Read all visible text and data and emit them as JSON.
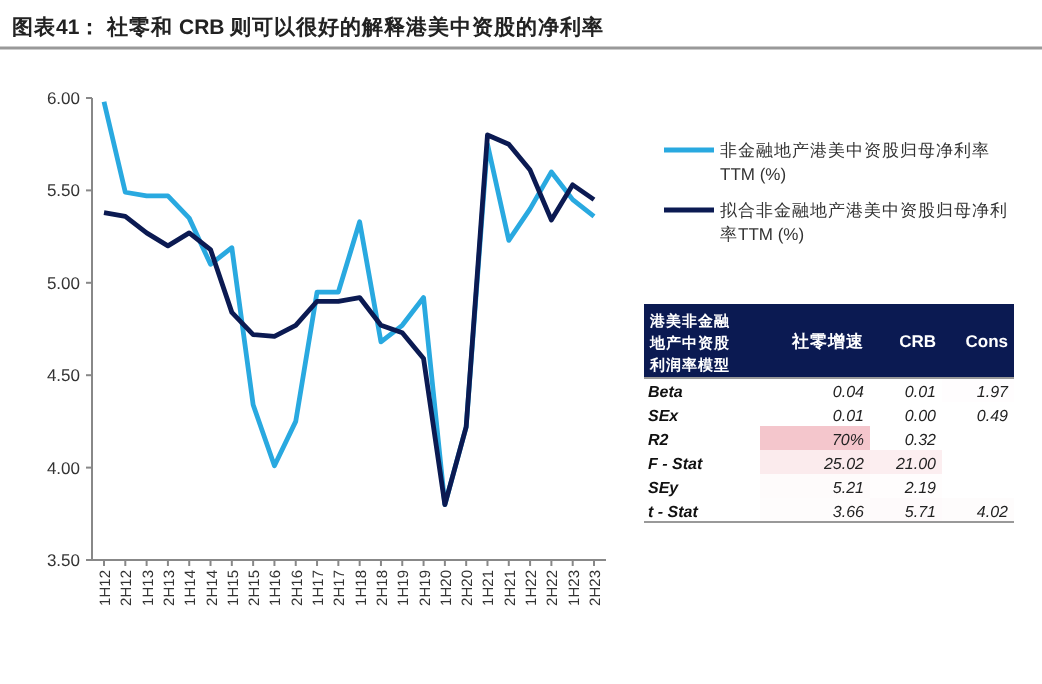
{
  "chart_data": [
    {
      "type": "line",
      "title": "图表41： 社零和 CRB 则可以很好的解释港美中资股的净利率",
      "categories": [
        "1H12",
        "2H12",
        "1H13",
        "2H13",
        "1H14",
        "2H14",
        "1H15",
        "2H15",
        "1H16",
        "2H16",
        "1H17",
        "2H17",
        "1H18",
        "2H18",
        "1H19",
        "2H19",
        "1H20",
        "2H20",
        "1H21",
        "2H21",
        "1H22",
        "2H22",
        "1H23",
        "2H23"
      ],
      "series": [
        {
          "name": "非金融地产港美中资股归母净利率TTM (%)",
          "color": "#29a9e0",
          "values": [
            5.98,
            5.49,
            5.47,
            5.47,
            5.35,
            5.1,
            5.19,
            4.34,
            4.01,
            4.25,
            4.95,
            4.95,
            5.33,
            4.68,
            4.77,
            4.92,
            3.8,
            4.22,
            5.75,
            5.23,
            5.4,
            5.6,
            5.45,
            5.36
          ]
        },
        {
          "name": "拟合非金融地产港美中资股归母净利率TTM (%)",
          "color": "#0b1a52",
          "values": [
            5.38,
            5.36,
            5.27,
            5.2,
            5.27,
            5.18,
            4.84,
            4.72,
            4.71,
            4.77,
            4.9,
            4.9,
            4.92,
            4.77,
            4.73,
            4.59,
            3.8,
            4.22,
            5.8,
            5.75,
            5.61,
            5.34,
            5.53,
            5.45
          ]
        }
      ],
      "ylim": [
        3.5,
        6.0
      ],
      "yticks": [
        {
          "value": 3.5,
          "label": "3.50"
        },
        {
          "value": 4.0,
          "label": "4.00"
        },
        {
          "value": 4.5,
          "label": "4.50"
        },
        {
          "value": 5.0,
          "label": "5.00"
        },
        {
          "value": 5.5,
          "label": "5.50"
        },
        {
          "value": 6.0,
          "label": "6.00"
        }
      ],
      "grid": false,
      "legend": "right",
      "marker": "none",
      "line_style": "solid"
    },
    {
      "type": "heatmap",
      "title": "港美非金融地产中资股利润率模型",
      "categories": [
        "社零增速",
        "CRB",
        "Cons"
      ],
      "y_categories": [
        "Beta",
        "SEx",
        "R2",
        "F - Stat",
        "SEy",
        "t - Stat"
      ],
      "cells": [
        [
          0.04,
          0.01,
          1.97
        ],
        [
          0.01,
          0.0,
          0.49
        ],
        [
          70,
          0.32,
          null
        ],
        [
          25.02,
          21.0,
          null
        ],
        [
          5.21,
          2.19,
          null
        ],
        [
          3.66,
          5.71,
          4.02
        ]
      ],
      "cell_labels": [
        [
          "0.04",
          "0.01",
          "1.97"
        ],
        [
          "0.01",
          "0.00",
          "0.49"
        ],
        [
          "70%",
          "0.32",
          null
        ],
        [
          "25.02",
          "21.00",
          null
        ],
        [
          "5.21",
          "2.19",
          null
        ],
        [
          "3.66",
          "5.71",
          "4.02"
        ]
      ]
    }
  ]
}
